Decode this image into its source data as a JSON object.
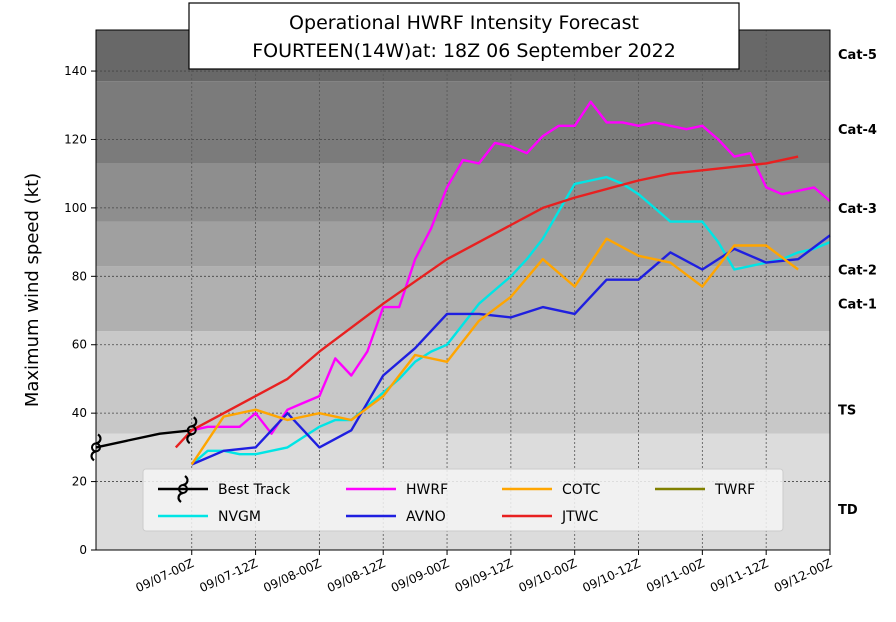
{
  "chart_data": {
    "type": "line",
    "title_line1": "Operational HWRF Intensity Forecast",
    "title_line2": "FOURTEEN(14W)at: 18Z 06 September 2022",
    "ylabel": "Maximum wind speed (kt)",
    "xlabel": "",
    "ylim": [
      0,
      152
    ],
    "xlim": [
      -18,
      120
    ],
    "x_unit": "hours from 09/07-00Z",
    "yticks": [
      0,
      20,
      40,
      60,
      80,
      100,
      120,
      140
    ],
    "xticks": [
      {
        "x": 0,
        "label": "09/07-00Z"
      },
      {
        "x": 12,
        "label": "09/07-12Z"
      },
      {
        "x": 24,
        "label": "09/08-00Z"
      },
      {
        "x": 36,
        "label": "09/08-12Z"
      },
      {
        "x": 48,
        "label": "09/09-00Z"
      },
      {
        "x": 60,
        "label": "09/09-12Z"
      },
      {
        "x": 72,
        "label": "09/10-00Z"
      },
      {
        "x": 84,
        "label": "09/10-12Z"
      },
      {
        "x": 96,
        "label": "09/11-00Z"
      },
      {
        "x": 108,
        "label": "09/11-12Z"
      },
      {
        "x": 120,
        "label": "09/12-00Z"
      }
    ],
    "grid": true,
    "bands": [
      {
        "label": "TD",
        "from": 0,
        "to": 34,
        "color": "#dcdcdc"
      },
      {
        "label": "TS",
        "from": 34,
        "to": 64,
        "color": "#c8c8c8"
      },
      {
        "label": "Cat-1",
        "from": 64,
        "to": 83,
        "color": "#b0b0b0"
      },
      {
        "label": "Cat-2",
        "from": 83,
        "to": 96,
        "color": "#a0a0a0"
      },
      {
        "label": "Cat-3",
        "from": 96,
        "to": 113,
        "color": "#8e8e8e"
      },
      {
        "label": "Cat-4",
        "from": 113,
        "to": 137,
        "color": "#7b7b7b"
      },
      {
        "label": "Cat-5",
        "from": 137,
        "to": 152,
        "color": "#686868"
      }
    ],
    "band_labels": [
      {
        "label": "TD",
        "y": 12
      },
      {
        "label": "TS",
        "y": 41
      },
      {
        "label": "Cat-1",
        "y": 72
      },
      {
        "label": "Cat-2",
        "y": 82
      },
      {
        "label": "Cat-3",
        "y": 100
      },
      {
        "label": "Cat-4",
        "y": 123
      },
      {
        "label": "Cat-5",
        "y": 145
      }
    ],
    "series": [
      {
        "name": "Best Track",
        "color": "#000000",
        "points": [
          [
            -18,
            30
          ],
          [
            -12,
            32
          ],
          [
            -6,
            34
          ],
          [
            0,
            35
          ]
        ]
      },
      {
        "name": "NVGM",
        "color": "#00e5e5",
        "points": [
          [
            0,
            25
          ],
          [
            3,
            29
          ],
          [
            6,
            29
          ],
          [
            9,
            28
          ],
          [
            12,
            28
          ],
          [
            15,
            29
          ],
          [
            18,
            30
          ],
          [
            21,
            33
          ],
          [
            24,
            36
          ],
          [
            27,
            38
          ],
          [
            30,
            38
          ],
          [
            33,
            42
          ],
          [
            36,
            46
          ],
          [
            39,
            50
          ],
          [
            42,
            55
          ],
          [
            45,
            58
          ],
          [
            48,
            60
          ],
          [
            51,
            66
          ],
          [
            54,
            72
          ],
          [
            57,
            76
          ],
          [
            60,
            80
          ],
          [
            63,
            85
          ],
          [
            66,
            91
          ],
          [
            69,
            99
          ],
          [
            72,
            107
          ],
          [
            75,
            108
          ],
          [
            78,
            109
          ],
          [
            81,
            107
          ],
          [
            84,
            104
          ],
          [
            87,
            100
          ],
          [
            90,
            96
          ],
          [
            93,
            96
          ],
          [
            96,
            96
          ],
          [
            99,
            90
          ],
          [
            102,
            82
          ],
          [
            105,
            83
          ],
          [
            108,
            84
          ],
          [
            111,
            85
          ],
          [
            114,
            87
          ],
          [
            117,
            88
          ],
          [
            120,
            90
          ]
        ]
      },
      {
        "name": "HWRF",
        "color": "#ff00ff",
        "points": [
          [
            0,
            35
          ],
          [
            3,
            36
          ],
          [
            6,
            36
          ],
          [
            9,
            36
          ],
          [
            12,
            40
          ],
          [
            15,
            34
          ],
          [
            18,
            41
          ],
          [
            21,
            43
          ],
          [
            24,
            45
          ],
          [
            27,
            56
          ],
          [
            30,
            51
          ],
          [
            33,
            58
          ],
          [
            36,
            71
          ],
          [
            39,
            71
          ],
          [
            42,
            85
          ],
          [
            45,
            94
          ],
          [
            48,
            106
          ],
          [
            51,
            114
          ],
          [
            54,
            113
          ],
          [
            57,
            119
          ],
          [
            60,
            118
          ],
          [
            63,
            116
          ],
          [
            66,
            121
          ],
          [
            69,
            124
          ],
          [
            72,
            124
          ],
          [
            75,
            131
          ],
          [
            78,
            125
          ],
          [
            81,
            125
          ],
          [
            84,
            124
          ],
          [
            87,
            125
          ],
          [
            90,
            124
          ],
          [
            93,
            123
          ],
          [
            96,
            124
          ],
          [
            99,
            120
          ],
          [
            102,
            115
          ],
          [
            105,
            116
          ],
          [
            108,
            106
          ],
          [
            111,
            104
          ],
          [
            114,
            105
          ],
          [
            117,
            106
          ],
          [
            120,
            102
          ]
        ]
      },
      {
        "name": "AVNO",
        "color": "#1f1fe0",
        "points": [
          [
            0,
            25
          ],
          [
            6,
            29
          ],
          [
            12,
            30
          ],
          [
            18,
            40
          ],
          [
            24,
            30
          ],
          [
            30,
            35
          ],
          [
            36,
            51
          ],
          [
            42,
            59
          ],
          [
            48,
            69
          ],
          [
            54,
            69
          ],
          [
            60,
            68
          ],
          [
            66,
            71
          ],
          [
            72,
            69
          ],
          [
            78,
            79
          ],
          [
            84,
            79
          ],
          [
            90,
            87
          ],
          [
            96,
            82
          ],
          [
            102,
            88
          ],
          [
            108,
            84
          ],
          [
            114,
            85
          ],
          [
            120,
            92
          ]
        ]
      },
      {
        "name": "JTWC",
        "color": "#e82020",
        "points": [
          [
            -3,
            30
          ],
          [
            0,
            35
          ],
          [
            6,
            40
          ],
          [
            12,
            45
          ],
          [
            18,
            50
          ],
          [
            24,
            58
          ],
          [
            36,
            72
          ],
          [
            48,
            85
          ],
          [
            60,
            95
          ],
          [
            66,
            100
          ],
          [
            72,
            103
          ],
          [
            84,
            108
          ],
          [
            90,
            110
          ],
          [
            96,
            111
          ],
          [
            102,
            112
          ],
          [
            108,
            113
          ],
          [
            114,
            115
          ]
        ]
      },
      {
        "name": "COTC",
        "color": "#ffa500",
        "points": [
          [
            0,
            25
          ],
          [
            6,
            39
          ],
          [
            12,
            41
          ],
          [
            18,
            38
          ],
          [
            24,
            40
          ],
          [
            30,
            38
          ],
          [
            36,
            45
          ],
          [
            42,
            57
          ],
          [
            48,
            55
          ],
          [
            54,
            67
          ],
          [
            60,
            74
          ],
          [
            66,
            85
          ],
          [
            72,
            77
          ],
          [
            78,
            91
          ],
          [
            84,
            86
          ],
          [
            90,
            84
          ],
          [
            96,
            77
          ],
          [
            102,
            89
          ],
          [
            108,
            89
          ],
          [
            114,
            82
          ]
        ]
      },
      {
        "name": "TWRF",
        "color": "#808000",
        "points": []
      }
    ],
    "legend": {
      "placement": "bottom-center",
      "entries": [
        "Best Track",
        "HWRF",
        "COTC",
        "TWRF",
        "NVGM",
        "AVNO",
        "JTWC"
      ]
    }
  }
}
